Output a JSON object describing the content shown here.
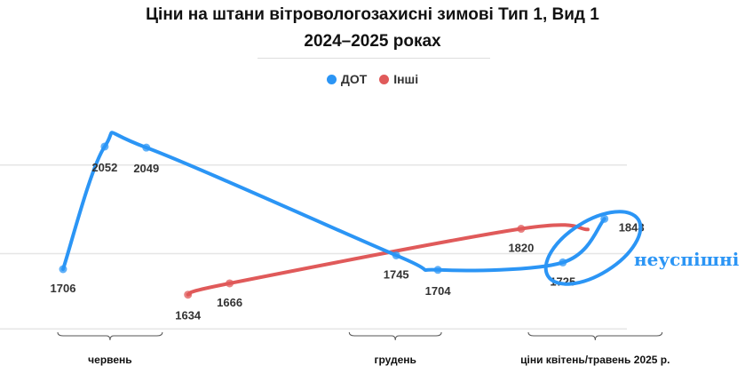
{
  "chart_data": {
    "type": "line",
    "title": "Ціни на штани вітровологозахисні зимові Тип 1, Вид 1",
    "subtitle": "2024–2025 роках",
    "xlabel": "",
    "ylabel": "",
    "ylim": [
      1500,
      2100
    ],
    "yticks": [
      1500,
      1750,
      2000
    ],
    "grid": true,
    "legend_position": "top-center",
    "x": [
      0,
      1,
      2,
      3,
      4,
      5,
      6,
      7,
      8,
      9,
      10,
      11,
      12,
      13
    ],
    "series": [
      {
        "name": "ДОТ",
        "color": "#2b95f5",
        "values": [
          1706,
          2052,
          2049,
          null,
          null,
          null,
          null,
          null,
          1745,
          1704,
          null,
          null,
          1725,
          1848
        ]
      },
      {
        "name": "Інші",
        "color": "#e05a5a",
        "values": [
          null,
          null,
          null,
          1634,
          1666,
          null,
          null,
          null,
          null,
          null,
          null,
          1820,
          null,
          null
        ]
      }
    ],
    "group_labels": [
      {
        "label": "червень",
        "from": 0,
        "to": 2.3
      },
      {
        "label": "грудень",
        "from": 7,
        "to": 9
      },
      {
        "label": "ціни квітень/травень 2025 р.",
        "from": 11.3,
        "to": 14.3
      }
    ],
    "annotation": "неуспішні"
  }
}
